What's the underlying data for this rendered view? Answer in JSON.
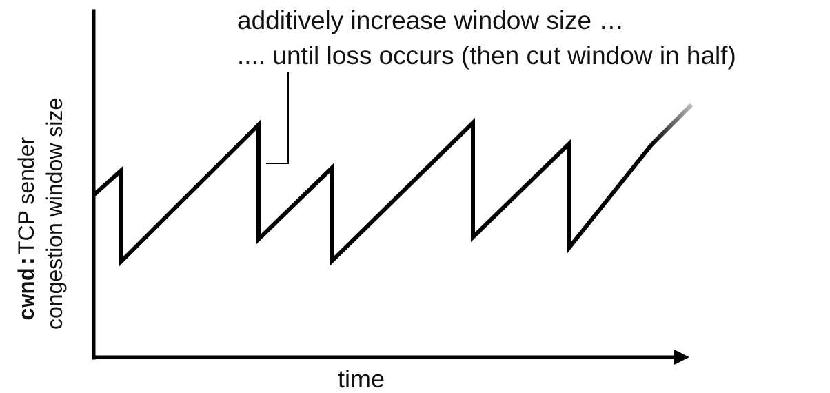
{
  "annotation": {
    "line1": "additively increase window size …",
    "line2": ".... until loss occurs (then cut window in half)"
  },
  "y_axis": {
    "code_label": "cwnd:",
    "line1": "TCP sender",
    "line2": "congestion window size"
  },
  "x_axis": {
    "label": "time"
  },
  "colors": {
    "line": "#000000",
    "text": "#111111"
  }
}
